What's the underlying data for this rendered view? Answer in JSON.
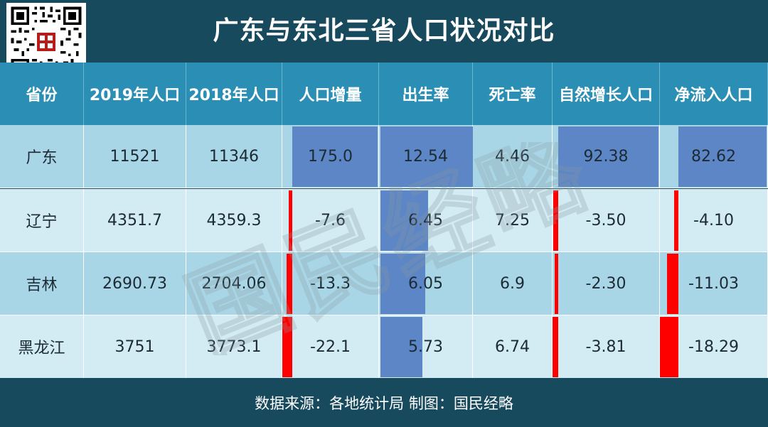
{
  "title": "广东与东北三省人口状况对比",
  "footer": "数据来源：各地统计局 制图：国民经略",
  "watermark_text": "国民经略",
  "colors": {
    "header_bg": "#2b8fb5",
    "title_bg": "#184a5e",
    "row_dark": "#a9d6e6",
    "row_light": "#d3ebf3",
    "bar_positive": "#5d86c6",
    "bar_negative": "#ff0000"
  },
  "chart_data": {
    "type": "table",
    "columns": [
      "省份",
      "2019年人口",
      "2018年人口",
      "人口增量",
      "出生率",
      "死亡率",
      "自然增长人口",
      "净流入人口"
    ],
    "rows": [
      {
        "province": "广东",
        "pop2019": "11521",
        "pop2018": "11346",
        "increase": "175.0",
        "birth": "12.54",
        "death": "4.46",
        "natural": "92.38",
        "inflow": "82.62"
      },
      {
        "province": "辽宁",
        "pop2019": "4351.7",
        "pop2018": "4359.3",
        "increase": "-7.6",
        "birth": "6.45",
        "death": "7.25",
        "natural": "-3.50",
        "inflow": "-4.10"
      },
      {
        "province": "吉林",
        "pop2019": "2690.73",
        "pop2018": "2704.06",
        "increase": "-13.3",
        "birth": "6.05",
        "death": "6.9",
        "natural": "-2.30",
        "inflow": "-11.03"
      },
      {
        "province": "黑龙江",
        "pop2019": "3751",
        "pop2018": "3773.1",
        "increase": "-22.1",
        "birth": "5.73",
        "death": "6.74",
        "natural": "-3.81",
        "inflow": "-18.29"
      }
    ],
    "databar_columns": [
      "increase",
      "birth",
      "natural",
      "inflow"
    ]
  }
}
